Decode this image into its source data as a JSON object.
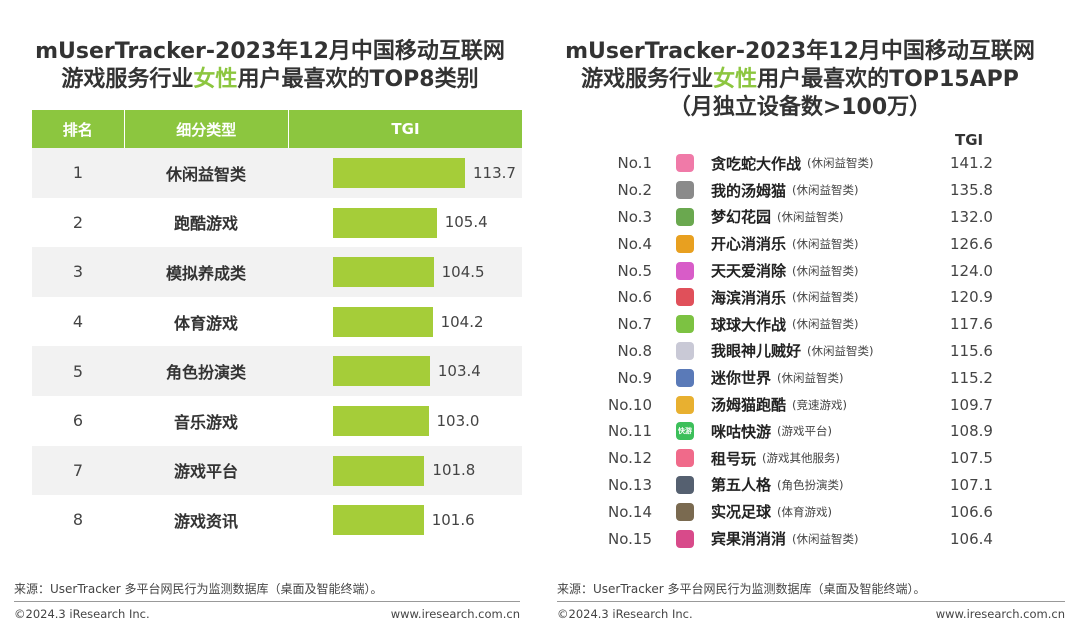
{
  "left": {
    "title_line1": "mUserTracker-2023年12月中国移动互联网",
    "title_line2_pre": "游戏服务行业",
    "title_line2_hl": "女性",
    "title_line2_post": "用户最喜欢的TOP8类别",
    "headers": {
      "rank": "排名",
      "category": "细分类型",
      "tgi": "TGI"
    },
    "source": "来源：UserTracker 多平台网民行为监测数据库（桌面及智能终端）。",
    "copyright": "©2024.3 iResearch Inc.",
    "website": "www.iresearch.com.cn"
  },
  "right": {
    "title_line1": "mUserTracker-2023年12月中国移动互联网",
    "title_line2_pre": "游戏服务行业",
    "title_line2_hl": "女性",
    "title_line2_post": "用户最喜欢的TOP15APP",
    "title_line3": "（月独立设备数>100万）",
    "tgi_header": "TGI",
    "items": [
      {
        "no": "No.1",
        "name": "贪吃蛇大作战",
        "cat": "(休闲益智类)",
        "tgi": "141.2",
        "icon": "snake-game-app-icon",
        "color": "#f07aa8"
      },
      {
        "no": "No.2",
        "name": "我的汤姆猫",
        "cat": "(休闲益智类)",
        "tgi": "135.8",
        "icon": "tom-cat-app-icon",
        "color": "#8a8a8a"
      },
      {
        "no": "No.3",
        "name": "梦幻花园",
        "cat": "(休闲益智类)",
        "tgi": "132.0",
        "icon": "garden-app-icon",
        "color": "#6aa84f"
      },
      {
        "no": "No.4",
        "name": "开心消消乐",
        "cat": "(休闲益智类)",
        "tgi": "126.6",
        "icon": "happy-match-app-icon",
        "color": "#e8a020"
      },
      {
        "no": "No.5",
        "name": "天天爱消除",
        "cat": "(休闲益智类)",
        "tgi": "124.0",
        "icon": "daily-match-app-icon",
        "color": "#d85cc8"
      },
      {
        "no": "No.6",
        "name": "海滨消消乐",
        "cat": "(休闲益智类)",
        "tgi": "120.9",
        "icon": "seaside-match-app-icon",
        "color": "#e0505a"
      },
      {
        "no": "No.7",
        "name": "球球大作战",
        "cat": "(休闲益智类)",
        "tgi": "117.6",
        "icon": "ball-battle-app-icon",
        "color": "#7cc242"
      },
      {
        "no": "No.8",
        "name": "我眼神儿贼好",
        "cat": "(休闲益智类)",
        "tgi": "115.6",
        "icon": "magnifier-app-icon",
        "color": "#c9c9d6"
      },
      {
        "no": "No.9",
        "name": "迷你世界",
        "cat": "(休闲益智类)",
        "tgi": "115.2",
        "icon": "mini-world-app-icon",
        "color": "#5a7ab8"
      },
      {
        "no": "No.10",
        "name": "汤姆猫跑酷",
        "cat": "(竞速游戏)",
        "tgi": "109.7",
        "icon": "tom-runner-app-icon",
        "color": "#e8b030"
      },
      {
        "no": "No.11",
        "name": "咪咕快游",
        "cat": "(游戏平台)",
        "tgi": "108.9",
        "icon": "migu-app-icon",
        "color": "#3cbf5a",
        "icon_text": "快游"
      },
      {
        "no": "No.12",
        "name": "租号玩",
        "cat": "(游戏其他服务)",
        "tgi": "107.5",
        "icon": "rent-account-app-icon",
        "color": "#f06a8a"
      },
      {
        "no": "No.13",
        "name": "第五人格",
        "cat": "(角色扮演类)",
        "tgi": "107.1",
        "icon": "identity-v-app-icon",
        "color": "#556070"
      },
      {
        "no": "No.14",
        "name": "实况足球",
        "cat": "(体育游戏)",
        "tgi": "106.6",
        "icon": "efootball-app-icon",
        "color": "#7a6a50"
      },
      {
        "no": "No.15",
        "name": "宾果消消消",
        "cat": "(休闲益智类)",
        "tgi": "106.4",
        "icon": "bingo-match-app-icon",
        "color": "#d84a8a"
      }
    ],
    "source": "来源：UserTracker 多平台网民行为监测数据库（桌面及智能终端）。",
    "copyright": "©2024.3 iResearch Inc.",
    "website": "www.iresearch.com.cn"
  },
  "colors": {
    "accent": "#8cc63f",
    "bar": "#a5cd39",
    "row_alt": "#f2f2f2"
  },
  "chart_data": [
    {
      "type": "bar",
      "title": "mUserTracker-2023年12月中国移动互联网游戏服务行业女性用户最喜欢的TOP8类别",
      "ranks": [
        "1",
        "2",
        "3",
        "4",
        "5",
        "6",
        "7",
        "8"
      ],
      "categories": [
        "休闲益智类",
        "跑酷游戏",
        "模拟养成类",
        "体育游戏",
        "角色扮演类",
        "音乐游戏",
        "游戏平台",
        "游戏资讯"
      ],
      "values": [
        113.7,
        105.4,
        104.5,
        104.2,
        103.4,
        103.0,
        101.8,
        101.6
      ],
      "value_labels": [
        "113.7",
        "105.4",
        "104.5",
        "104.2",
        "103.4",
        "103.0",
        "101.8",
        "101.6"
      ],
      "xlabel": "TGI",
      "ylabel": "",
      "xlim": [
        0,
        113.7
      ]
    },
    {
      "type": "table",
      "title": "mUserTracker-2023年12月中国移动互联网游戏服务行业女性用户最喜欢的TOP15APP（月独立设备数>100万）",
      "categories": [
        "贪吃蛇大作战",
        "我的汤姆猫",
        "梦幻花园",
        "开心消消乐",
        "天天爱消除",
        "海滨消消乐",
        "球球大作战",
        "我眼神儿贼好",
        "迷你世界",
        "汤姆猫跑酷",
        "咪咕快游",
        "租号玩",
        "第五人格",
        "实况足球",
        "宾果消消消"
      ],
      "values": [
        141.2,
        135.8,
        132.0,
        126.6,
        124.0,
        120.9,
        117.6,
        115.6,
        115.2,
        109.7,
        108.9,
        107.5,
        107.1,
        106.6,
        106.4
      ]
    }
  ]
}
